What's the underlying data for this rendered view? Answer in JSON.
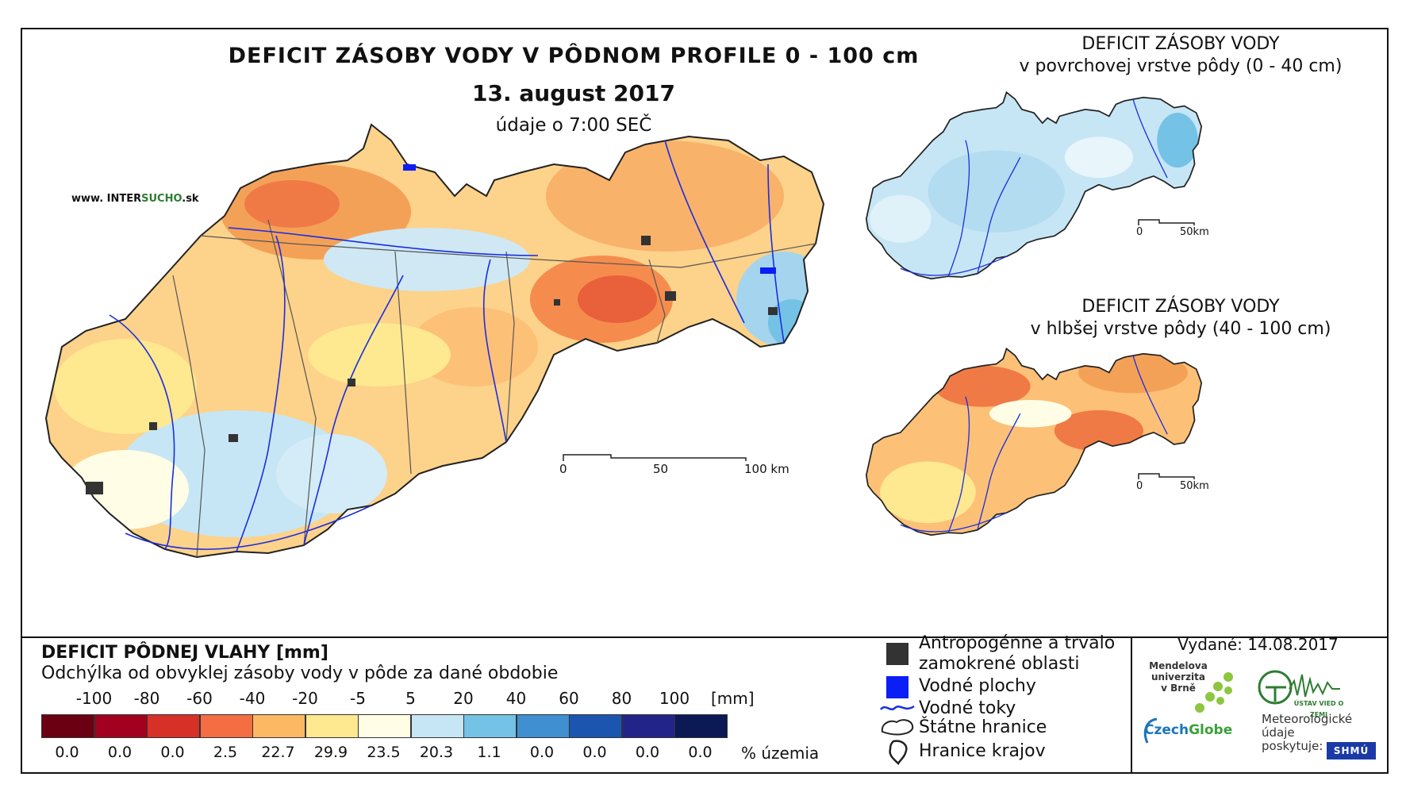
{
  "map": {
    "title": "DEFICIT ZÁSOBY VODY V PÔDNOM PROFILE 0 - 100 cm",
    "date": "13. august 2017",
    "time_note": "údaje o 7:00 SEČ",
    "website_prefix": "www. INTER",
    "website_highlight": "SUCHO",
    "website_suffix": ".sk",
    "scale": {
      "labels": [
        "0",
        "50",
        "100 km"
      ]
    }
  },
  "inset_surface": {
    "title_line1": "DEFICIT ZÁSOBY VODY",
    "title_line2": "v povrchovej vrstve pôdy (0 - 40 cm)",
    "scale": [
      "0",
      "50km"
    ]
  },
  "inset_deep": {
    "title_line1": "DEFICIT ZÁSOBY VODY",
    "title_line2": "v hlbšej vrstve pôdy (40 - 100 cm)",
    "scale": [
      "0",
      "50km"
    ]
  },
  "legend": {
    "title": "DEFICIT PÔDNEJ VLAHY [mm]",
    "subtitle": "Odchýlka od obvyklej zásoby vody v pôde za dané obdobie",
    "breaks": [
      "-100",
      "-80",
      "-60",
      "-40",
      "-20",
      "-5",
      "5",
      "20",
      "40",
      "60",
      "80",
      "100"
    ],
    "unit_mm": "[mm]",
    "unit_pct": "% územia",
    "classes": [
      {
        "color": "#6b0012",
        "pct": "0.0"
      },
      {
        "color": "#a3001f",
        "pct": "0.0"
      },
      {
        "color": "#d73027",
        "pct": "0.0"
      },
      {
        "color": "#f46d43",
        "pct": "2.5"
      },
      {
        "color": "#fdb863",
        "pct": "22.7"
      },
      {
        "color": "#fee890",
        "pct": "29.9"
      },
      {
        "color": "#fffde5",
        "pct": "23.5"
      },
      {
        "color": "#c6e6f5",
        "pct": "20.3"
      },
      {
        "color": "#74c2e6",
        "pct": "1.1"
      },
      {
        "color": "#3f8fd1",
        "pct": "0.0"
      },
      {
        "color": "#1c55b0",
        "pct": "0.0"
      },
      {
        "color": "#23248a",
        "pct": "0.0"
      },
      {
        "color": "#0b1a55",
        "pct": "0.0"
      }
    ]
  },
  "symbols": {
    "anthropogenic_line1": "Antropogénne a trvalo",
    "anthropogenic_line2": "zamokrené oblasti",
    "water_areas": "Vodné plochy",
    "streams": "Vodné toky",
    "state_border": "Štátne hranice",
    "region_border": "Hranice krajov"
  },
  "issued": "Vydané: 14.08.2017",
  "logos": {
    "mendel_line1": "Mendelova",
    "mendel_line2": "univerzita",
    "mendel_line3": "v Brně",
    "czechglobe_a": "Czech",
    "czechglobe_b": "Globe",
    "ustav": "ÚSTAV VIED O ZEMI",
    "meteo_line1": "Meteorologické",
    "meteo_line2": "údaje",
    "meteo_line3": "poskytuje:",
    "shmu": "SHMÚ"
  }
}
